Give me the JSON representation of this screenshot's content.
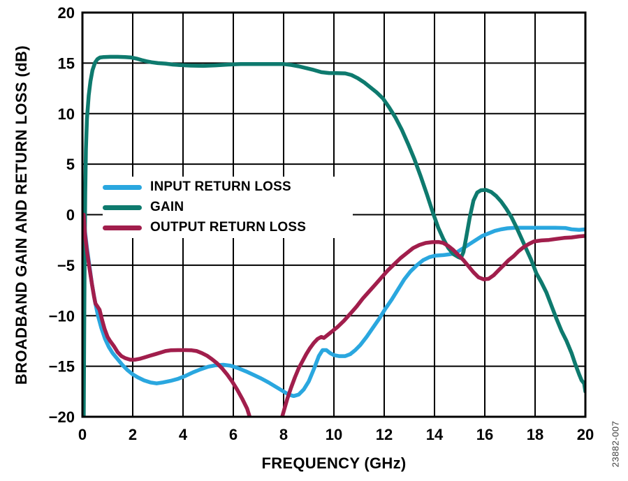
{
  "figure": {
    "watermark": "23882-007"
  },
  "chart_data": {
    "type": "line",
    "title": "",
    "xlabel": "FREQUENCY (GHz)",
    "ylabel": "BROADBAND GAIN AND RETURN LOSS (dB)",
    "xlim": [
      0,
      20
    ],
    "ylim": [
      -20,
      20
    ],
    "x_ticks": [
      0,
      2,
      4,
      6,
      8,
      10,
      12,
      14,
      16,
      18,
      20
    ],
    "y_ticks": [
      20,
      15,
      10,
      5,
      0,
      -5,
      -10,
      -15,
      -20
    ],
    "grid": true,
    "legend_position": "inside-middle-left",
    "axis_color": "#000000",
    "background_color": "#ffffff",
    "series": [
      {
        "name": "INPUT RETURN LOSS",
        "color": "#2AA7DF",
        "points": [
          [
            0.05,
            0
          ],
          [
            0.1,
            -1.6
          ],
          [
            0.18,
            -3.3
          ],
          [
            0.28,
            -5.1
          ],
          [
            0.38,
            -6.9
          ],
          [
            0.5,
            -8.6
          ],
          [
            0.62,
            -10
          ],
          [
            0.75,
            -11.2
          ],
          [
            0.9,
            -12.3
          ],
          [
            1.05,
            -13.1
          ],
          [
            1.2,
            -13.7
          ],
          [
            1.4,
            -14.3
          ],
          [
            1.6,
            -14.9
          ],
          [
            1.8,
            -15.4
          ],
          [
            2,
            -15.8
          ],
          [
            2.2,
            -16.1
          ],
          [
            2.45,
            -16.4
          ],
          [
            2.7,
            -16.6
          ],
          [
            2.95,
            -16.7
          ],
          [
            3.2,
            -16.6
          ],
          [
            3.5,
            -16.45
          ],
          [
            3.8,
            -16.25
          ],
          [
            4.1,
            -15.95
          ],
          [
            4.4,
            -15.6
          ],
          [
            4.7,
            -15.3
          ],
          [
            5,
            -15.05
          ],
          [
            5.3,
            -14.9
          ],
          [
            5.6,
            -14.85
          ],
          [
            5.9,
            -14.95
          ],
          [
            6.2,
            -15.2
          ],
          [
            6.5,
            -15.5
          ],
          [
            6.8,
            -15.85
          ],
          [
            7.1,
            -16.2
          ],
          [
            7.4,
            -16.6
          ],
          [
            7.7,
            -17.05
          ],
          [
            8,
            -17.5
          ],
          [
            8.2,
            -17.8
          ],
          [
            8.4,
            -17.95
          ],
          [
            8.6,
            -17.8
          ],
          [
            8.8,
            -17.3
          ],
          [
            9,
            -16.5
          ],
          [
            9.2,
            -15.3
          ],
          [
            9.4,
            -14
          ],
          [
            9.55,
            -13.4
          ],
          [
            9.7,
            -13.4
          ],
          [
            9.85,
            -13.7
          ],
          [
            10,
            -13.9
          ],
          [
            10.2,
            -14
          ],
          [
            10.45,
            -14
          ],
          [
            10.65,
            -13.8
          ],
          [
            10.85,
            -13.4
          ],
          [
            11.05,
            -12.9
          ],
          [
            11.3,
            -12.1
          ],
          [
            11.55,
            -11.2
          ],
          [
            11.8,
            -10.3
          ],
          [
            12.05,
            -9.3
          ],
          [
            12.3,
            -8.4
          ],
          [
            12.55,
            -7.4
          ],
          [
            12.8,
            -6.4
          ],
          [
            13.05,
            -5.6
          ],
          [
            13.3,
            -5
          ],
          [
            13.55,
            -4.5
          ],
          [
            13.8,
            -4.2
          ],
          [
            14.05,
            -4.05
          ],
          [
            14.35,
            -4
          ],
          [
            14.65,
            -3.9
          ],
          [
            14.9,
            -3.7
          ],
          [
            15.15,
            -3.3
          ],
          [
            15.4,
            -2.9
          ],
          [
            15.65,
            -2.5
          ],
          [
            15.9,
            -2.1
          ],
          [
            16.15,
            -1.85
          ],
          [
            16.4,
            -1.6
          ],
          [
            16.65,
            -1.45
          ],
          [
            16.9,
            -1.35
          ],
          [
            17.2,
            -1.3
          ],
          [
            17.6,
            -1.3
          ],
          [
            18,
            -1.3
          ],
          [
            18.4,
            -1.3
          ],
          [
            18.8,
            -1.3
          ],
          [
            19.2,
            -1.32
          ],
          [
            19.45,
            -1.45
          ],
          [
            19.75,
            -1.5
          ],
          [
            20,
            -1.45
          ]
        ]
      },
      {
        "name": "GAIN",
        "color": "#0E7A6E",
        "points": [
          [
            0.05,
            -21
          ],
          [
            0.07,
            -12
          ],
          [
            0.09,
            -4
          ],
          [
            0.11,
            2
          ],
          [
            0.14,
            6.5
          ],
          [
            0.18,
            9.5
          ],
          [
            0.25,
            11.8
          ],
          [
            0.32,
            13.2
          ],
          [
            0.4,
            14.3
          ],
          [
            0.5,
            15.05
          ],
          [
            0.6,
            15.4
          ],
          [
            0.7,
            15.55
          ],
          [
            0.85,
            15.6
          ],
          [
            1.1,
            15.62
          ],
          [
            1.4,
            15.62
          ],
          [
            1.7,
            15.6
          ],
          [
            1.95,
            15.55
          ],
          [
            2.15,
            15.45
          ],
          [
            2.35,
            15.3
          ],
          [
            2.55,
            15.18
          ],
          [
            2.75,
            15.08
          ],
          [
            3,
            15
          ],
          [
            3.3,
            14.95
          ],
          [
            3.6,
            14.85
          ],
          [
            3.9,
            14.8
          ],
          [
            4.3,
            14.75
          ],
          [
            4.8,
            14.72
          ],
          [
            5.3,
            14.78
          ],
          [
            5.8,
            14.85
          ],
          [
            6.3,
            14.9
          ],
          [
            6.9,
            14.9
          ],
          [
            7.5,
            14.9
          ],
          [
            8,
            14.9
          ],
          [
            8.3,
            14.82
          ],
          [
            8.6,
            14.68
          ],
          [
            8.9,
            14.5
          ],
          [
            9.2,
            14.32
          ],
          [
            9.5,
            14.1
          ],
          [
            9.8,
            14.02
          ],
          [
            10.1,
            14
          ],
          [
            10.45,
            13.98
          ],
          [
            10.7,
            13.82
          ],
          [
            10.95,
            13.5
          ],
          [
            11.2,
            13.1
          ],
          [
            11.45,
            12.6
          ],
          [
            11.7,
            12.1
          ],
          [
            11.95,
            11.5
          ],
          [
            12.2,
            10.6
          ],
          [
            12.45,
            9.6
          ],
          [
            12.7,
            8.4
          ],
          [
            12.95,
            7
          ],
          [
            13.2,
            5.5
          ],
          [
            13.45,
            3.8
          ],
          [
            13.7,
            2
          ],
          [
            13.95,
            0.1
          ],
          [
            14.15,
            -1.3
          ],
          [
            14.35,
            -2.4
          ],
          [
            14.55,
            -3.3
          ],
          [
            14.75,
            -3.9
          ],
          [
            14.95,
            -4.2
          ],
          [
            15.05,
            -4.3
          ],
          [
            15.15,
            -3.7
          ],
          [
            15.25,
            -2.4
          ],
          [
            15.4,
            -0.3
          ],
          [
            15.55,
            1.4
          ],
          [
            15.7,
            2.2
          ],
          [
            15.85,
            2.42
          ],
          [
            16.05,
            2.45
          ],
          [
            16.25,
            2.25
          ],
          [
            16.45,
            1.85
          ],
          [
            16.65,
            1.3
          ],
          [
            16.85,
            0.6
          ],
          [
            17.05,
            -0.2
          ],
          [
            17.25,
            -1.2
          ],
          [
            17.45,
            -2.3
          ],
          [
            17.65,
            -3.4
          ],
          [
            17.85,
            -4.5
          ],
          [
            18.05,
            -5.8
          ],
          [
            18.25,
            -6.7
          ],
          [
            18.45,
            -7.7
          ],
          [
            18.65,
            -9
          ],
          [
            18.85,
            -10.3
          ],
          [
            19.05,
            -11.5
          ],
          [
            19.25,
            -12.5
          ],
          [
            19.45,
            -13.7
          ],
          [
            19.6,
            -14.8
          ],
          [
            19.75,
            -15.8
          ],
          [
            19.85,
            -16.4
          ],
          [
            19.95,
            -16.7
          ],
          [
            20,
            -17.5
          ]
        ]
      },
      {
        "name": "OUTPUT RETURN LOSS",
        "color": "#A11E4C",
        "points": [
          [
            0.05,
            0
          ],
          [
            0.1,
            -1.9
          ],
          [
            0.18,
            -3.6
          ],
          [
            0.28,
            -5.3
          ],
          [
            0.38,
            -6.9
          ],
          [
            0.46,
            -8.1
          ],
          [
            0.52,
            -8.8
          ],
          [
            0.6,
            -9.1
          ],
          [
            0.68,
            -9.4
          ],
          [
            0.78,
            -10.4
          ],
          [
            0.88,
            -11.3
          ],
          [
            1,
            -12.1
          ],
          [
            1.1,
            -12.5
          ],
          [
            1.25,
            -13
          ],
          [
            1.4,
            -13.6
          ],
          [
            1.55,
            -14
          ],
          [
            1.7,
            -14.2
          ],
          [
            1.9,
            -14.35
          ],
          [
            2.1,
            -14.35
          ],
          [
            2.3,
            -14.25
          ],
          [
            2.5,
            -14.1
          ],
          [
            2.7,
            -13.95
          ],
          [
            2.9,
            -13.8
          ],
          [
            3.1,
            -13.65
          ],
          [
            3.3,
            -13.5
          ],
          [
            3.5,
            -13.42
          ],
          [
            3.8,
            -13.4
          ],
          [
            4.1,
            -13.4
          ],
          [
            4.35,
            -13.42
          ],
          [
            4.55,
            -13.5
          ],
          [
            4.75,
            -13.7
          ],
          [
            4.95,
            -13.95
          ],
          [
            5.15,
            -14.3
          ],
          [
            5.35,
            -14.7
          ],
          [
            5.55,
            -15.2
          ],
          [
            5.75,
            -15.8
          ],
          [
            5.95,
            -16.5
          ],
          [
            6.15,
            -17.3
          ],
          [
            6.35,
            -18.2
          ],
          [
            6.55,
            -19.2
          ],
          [
            6.7,
            -20.4
          ],
          [
            7,
            -22.5
          ],
          [
            7.5,
            -23
          ],
          [
            7.85,
            -20.8
          ],
          [
            8,
            -19.5
          ],
          [
            8.15,
            -18.2
          ],
          [
            8.3,
            -17.1
          ],
          [
            8.45,
            -16.1
          ],
          [
            8.6,
            -15.2
          ],
          [
            8.75,
            -14.5
          ],
          [
            8.9,
            -13.8
          ],
          [
            9.05,
            -13.2
          ],
          [
            9.2,
            -12.7
          ],
          [
            9.35,
            -12.3
          ],
          [
            9.5,
            -12.1
          ],
          [
            9.6,
            -12.2
          ],
          [
            9.75,
            -11.9
          ],
          [
            9.95,
            -11.5
          ],
          [
            10.15,
            -11.1
          ],
          [
            10.4,
            -10.5
          ],
          [
            10.65,
            -9.8
          ],
          [
            10.9,
            -9.1
          ],
          [
            11.15,
            -8.3
          ],
          [
            11.4,
            -7.6
          ],
          [
            11.65,
            -6.9
          ],
          [
            11.9,
            -6.2
          ],
          [
            12.15,
            -5.5
          ],
          [
            12.4,
            -4.9
          ],
          [
            12.65,
            -4.3
          ],
          [
            12.9,
            -3.8
          ],
          [
            13.15,
            -3.3
          ],
          [
            13.4,
            -3
          ],
          [
            13.65,
            -2.8
          ],
          [
            13.9,
            -2.72
          ],
          [
            14.15,
            -2.7
          ],
          [
            14.35,
            -2.8
          ],
          [
            14.55,
            -3.1
          ],
          [
            14.75,
            -3.5
          ],
          [
            14.95,
            -4
          ],
          [
            15.15,
            -4.5
          ],
          [
            15.35,
            -5.1
          ],
          [
            15.55,
            -5.7
          ],
          [
            15.75,
            -6.2
          ],
          [
            15.95,
            -6.4
          ],
          [
            16.15,
            -6.35
          ],
          [
            16.35,
            -6
          ],
          [
            16.55,
            -5.5
          ],
          [
            16.75,
            -5
          ],
          [
            16.95,
            -4.5
          ],
          [
            17.15,
            -4.1
          ],
          [
            17.35,
            -3.6
          ],
          [
            17.55,
            -3.2
          ],
          [
            17.75,
            -2.9
          ],
          [
            17.95,
            -2.65
          ],
          [
            18.25,
            -2.55
          ],
          [
            18.55,
            -2.5
          ],
          [
            18.85,
            -2.4
          ],
          [
            19.15,
            -2.3
          ],
          [
            19.45,
            -2.25
          ],
          [
            19.75,
            -2.15
          ],
          [
            20,
            -2.1
          ]
        ]
      }
    ]
  }
}
